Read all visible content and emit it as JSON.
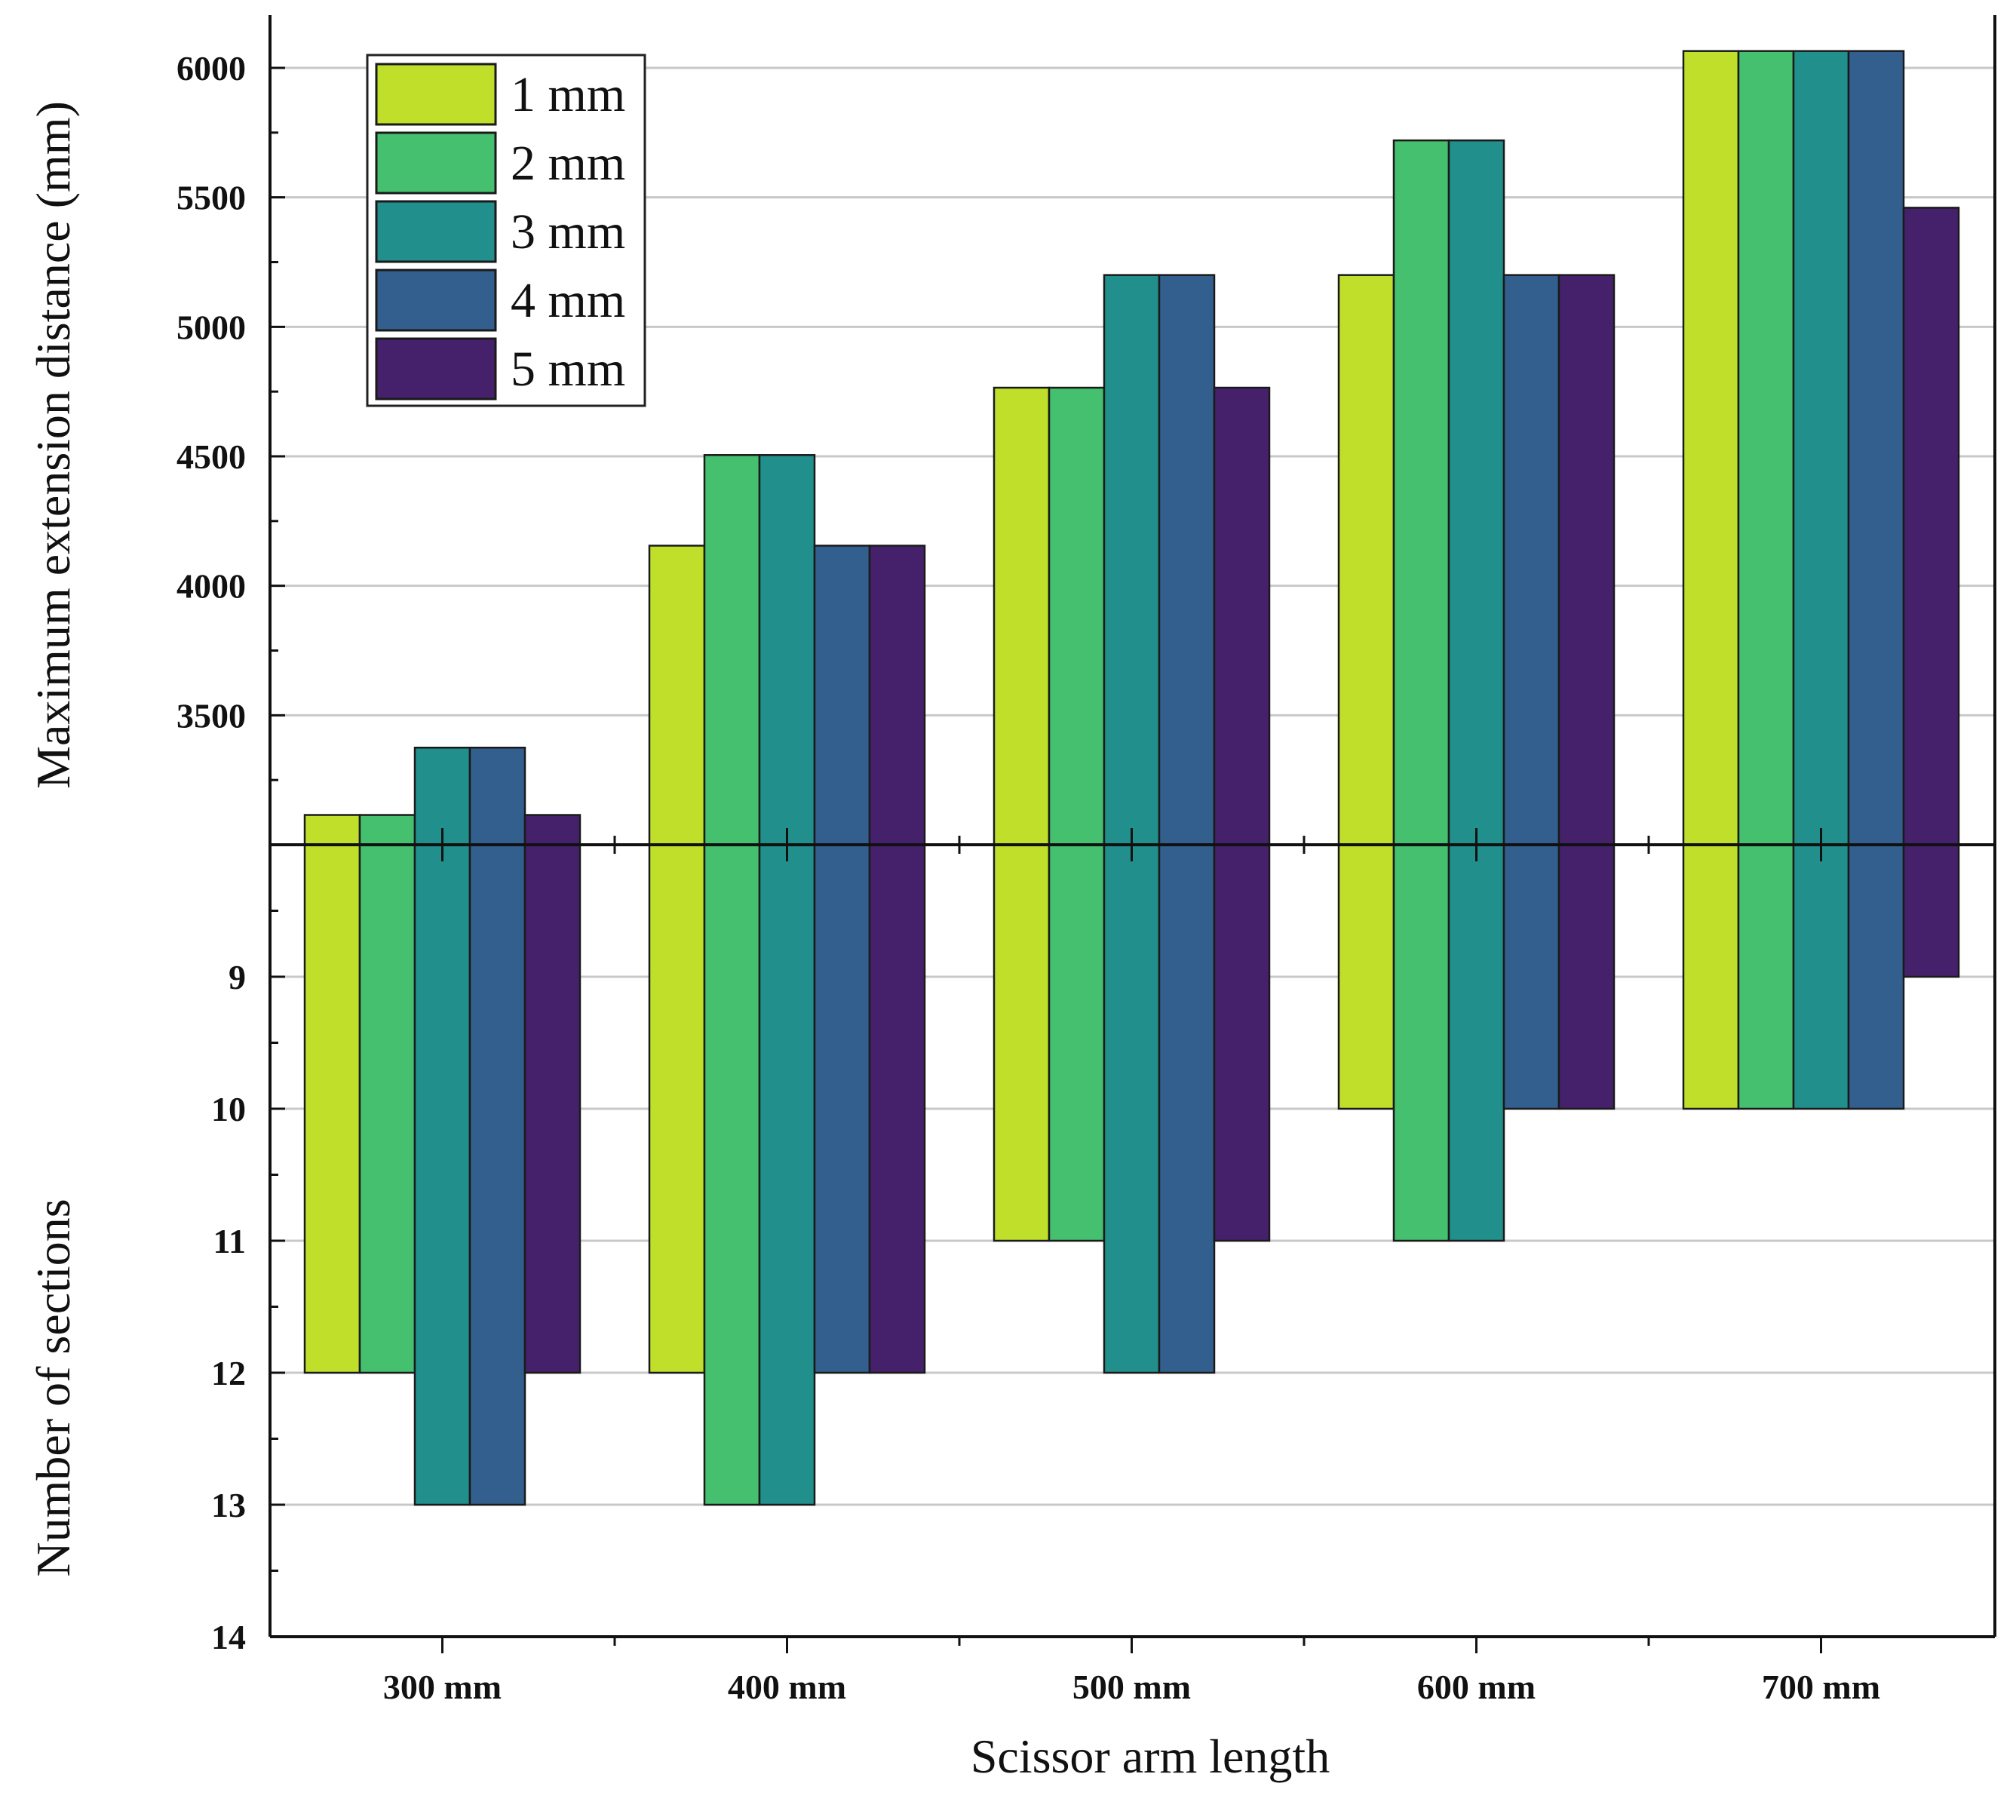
{
  "chart_data": {
    "type": "bar",
    "xlabel": "Scissor arm length",
    "categories": [
      "300 mm",
      "400 mm",
      "500 mm",
      "600 mm",
      "700 mm"
    ],
    "top_panel": {
      "ylabel": "Maximum extension distance (mm)",
      "ylim": [
        3000,
        6200
      ],
      "yticks": [
        3500,
        4000,
        4500,
        5000,
        5500,
        6000
      ],
      "series": [
        {
          "name": "1 mm",
          "values": [
            3115,
            4155,
            4765,
            5200,
            6065
          ]
        },
        {
          "name": "2 mm",
          "values": [
            3115,
            4505,
            4765,
            5720,
            6065
          ]
        },
        {
          "name": "3 mm",
          "values": [
            3375,
            4505,
            5200,
            5720,
            6065
          ]
        },
        {
          "name": "4 mm",
          "values": [
            3375,
            4155,
            5200,
            5200,
            6065
          ]
        },
        {
          "name": "5 mm",
          "values": [
            3115,
            4155,
            4765,
            5200,
            5460
          ]
        }
      ]
    },
    "bottom_panel": {
      "ylabel": "Number of sections",
      "ylim": [
        8,
        14
      ],
      "inverted": true,
      "yticks": [
        9,
        10,
        11,
        12,
        13,
        14
      ],
      "series": [
        {
          "name": "1 mm",
          "values": [
            12,
            12,
            11,
            10,
            10
          ]
        },
        {
          "name": "2 mm",
          "values": [
            12,
            13,
            11,
            11,
            10
          ]
        },
        {
          "name": "3 mm",
          "values": [
            13,
            13,
            12,
            11,
            10
          ]
        },
        {
          "name": "4 mm",
          "values": [
            13,
            12,
            12,
            10,
            10
          ]
        },
        {
          "name": "5 mm",
          "values": [
            12,
            12,
            11,
            10,
            9
          ]
        }
      ]
    },
    "legend": {
      "position": "top-left",
      "entries": [
        "1 mm",
        "2 mm",
        "3 mm",
        "4 mm",
        "5 mm"
      ]
    },
    "colors": [
      "#bfdf2a",
      "#44c06e",
      "#218f8b",
      "#325f8e",
      "#46216b"
    ],
    "grid": true
  }
}
